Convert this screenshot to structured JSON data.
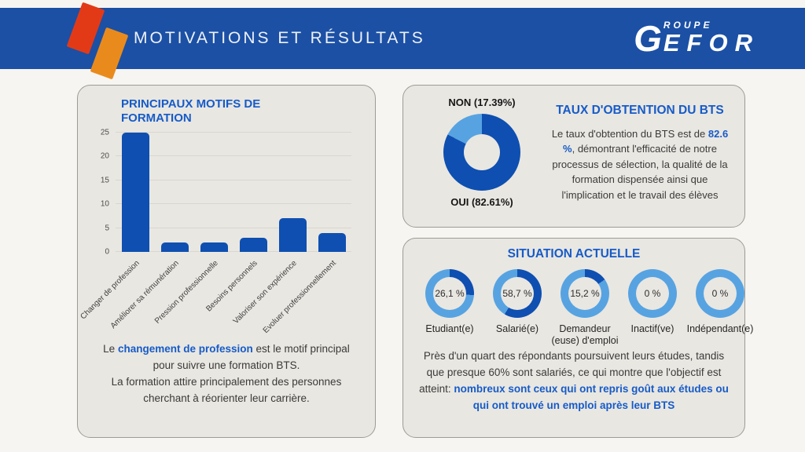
{
  "header": {
    "title": "MOTIVATIONS ET RÉSULTATS",
    "logo": {
      "g": "G",
      "roupe": "ROUPE",
      "efor": "EFOR"
    }
  },
  "colors": {
    "band_blue": "#1b50a5",
    "accent_blue": "#165bc9",
    "dark_blue": "#0e4fb1",
    "light_blue": "#57a3e2",
    "red_shape": "#e23a17",
    "orange_shape": "#e98b1c",
    "panel_bg": "#e9e7e1"
  },
  "chart_data": [
    {
      "id": "motifs_bar",
      "type": "bar",
      "title": "PRINCIPAUX MOTIFS DE FORMATION",
      "categories": [
        "Changer de profession",
        "Améliorer sa rémunération",
        "Pression professionnelle",
        "Besoins personnels",
        "Valoriser son expérience",
        "Evoluer professionnellement"
      ],
      "values": [
        25,
        2,
        2,
        3,
        7,
        4
      ],
      "xlabel": "",
      "ylabel": "",
      "ylim": [
        0,
        25
      ],
      "yticks": [
        0,
        5,
        10,
        15,
        20,
        25
      ],
      "grid": true,
      "bar_color": "#0e4fb1"
    },
    {
      "id": "bts_donut",
      "type": "pie",
      "title": "TAUX D'OBTENTION DU BTS",
      "labels": [
        "OUI",
        "NON"
      ],
      "values": [
        82.61,
        17.39
      ],
      "colors": [
        "#0e4fb1",
        "#57a3e2"
      ],
      "hole": 0.47,
      "legend_position": "outside-top-bottom"
    },
    {
      "id": "situation_gauges",
      "type": "pie",
      "title": "SITUATION ACTUELLE",
      "gauges": [
        {
          "pct": 26.1,
          "display": "26,1 %",
          "label": "Etudiant(e)"
        },
        {
          "pct": 58.7,
          "display": "58,7 %",
          "label": "Salarié(e)"
        },
        {
          "pct": 15.2,
          "display": "15,2 %",
          "label": "Demandeur (euse) d'emploi"
        },
        {
          "pct": 0,
          "display": "0 %",
          "label": "Inactif(ve)"
        },
        {
          "pct": 0,
          "display": "0 %",
          "label": "Indépendant(e)"
        }
      ],
      "arc_color": "#0e4fb1",
      "ring_color": "#57a3e2"
    }
  ],
  "motifs_panel": {
    "title": "PRINCIPAUX MOTIFS DE FORMATION",
    "caption_pre": "Le ",
    "caption_highlight": "changement de profession",
    "caption_post": " est le motif principal pour suivre une formation BTS.",
    "caption_line2": "La formation attire principalement des personnes cherchant à réorienter leur carrière."
  },
  "bts_panel": {
    "donut_label_top": "NON (17.39%)",
    "donut_label_bottom": "OUI (82.61%)",
    "title": "TAUX D'OBTENTION DU BTS",
    "text_pre": "Le taux d'obtention du BTS est de ",
    "text_highlight": "82.6 %",
    "text_post": ", démontrant l'efficacité de notre processus de sélection, la qualité de la formation dispensée ainsi que l'implication et le travail des élèves"
  },
  "situation_panel": {
    "title": "SITUATION ACTUELLE",
    "text_pre": "Près d'un quart des répondants poursuivent leurs études, tandis que presque 60% sont salariés, ce qui montre que l'objectif est atteint: ",
    "text_highlight": "nombreux sont ceux qui ont repris goût aux études ou qui ont trouvé un emploi après leur BTS"
  }
}
